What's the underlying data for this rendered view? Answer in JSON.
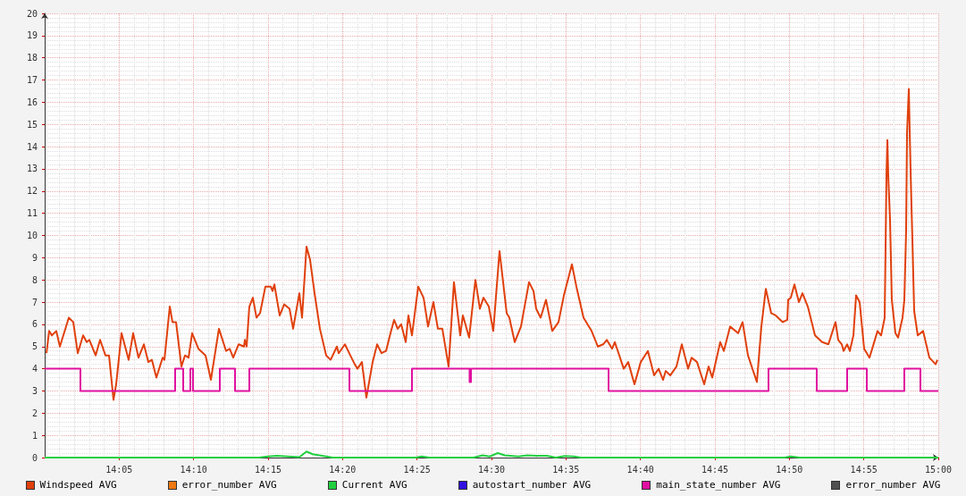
{
  "chart_data": {
    "type": "line",
    "xlim": [
      14,
      15
    ],
    "ylim": [
      0,
      20
    ],
    "xticks": [
      {
        "value": 14.083333,
        "label": "14:05"
      },
      {
        "value": 14.166667,
        "label": "14:10"
      },
      {
        "value": 14.25,
        "label": "14:15"
      },
      {
        "value": 14.333333,
        "label": "14:20"
      },
      {
        "value": 14.416667,
        "label": "14:25"
      },
      {
        "value": 14.5,
        "label": "14:30"
      },
      {
        "value": 14.583333,
        "label": "14:35"
      },
      {
        "value": 14.666667,
        "label": "14:40"
      },
      {
        "value": 14.75,
        "label": "14:45"
      },
      {
        "value": 14.833333,
        "label": "14:50"
      },
      {
        "value": 14.916667,
        "label": "14:55"
      },
      {
        "value": 15,
        "label": "15:00"
      }
    ],
    "yticks": [
      0,
      1,
      2,
      3,
      4,
      5,
      6,
      7,
      8,
      9,
      10,
      11,
      12,
      13,
      14,
      15,
      16,
      17,
      18,
      19,
      20
    ],
    "grid": true,
    "legend": "bottom",
    "marker": "none",
    "line_style": "solid",
    "series": [
      {
        "name": "Windspeed AVG",
        "color": "#e0400c",
        "x": [
          14.002,
          14.005,
          14.008,
          14.013,
          14.017,
          14.027,
          14.032,
          14.037,
          14.043,
          14.047,
          14.05,
          14.057,
          14.062,
          14.068,
          14.072,
          14.077,
          14.08,
          14.086,
          14.094,
          14.099,
          14.105,
          14.111,
          14.116,
          14.12,
          14.125,
          14.132,
          14.134,
          14.14,
          14.143,
          14.147,
          14.153,
          14.157,
          14.161,
          14.165,
          14.172,
          14.18,
          14.186,
          14.195,
          14.203,
          14.207,
          14.211,
          14.217,
          14.223,
          14.224,
          14.226,
          14.229,
          14.233,
          14.237,
          14.241,
          14.247,
          14.253,
          14.255,
          14.257,
          14.263,
          14.268,
          14.274,
          14.278,
          14.285,
          14.288,
          14.293,
          14.297,
          14.302,
          14.308,
          14.315,
          14.32,
          14.327,
          14.329,
          14.336,
          14.342,
          14.347,
          14.35,
          14.355,
          14.36,
          14.367,
          14.372,
          14.377,
          14.382,
          14.387,
          14.391,
          14.395,
          14.399,
          14.404,
          14.407,
          14.411,
          14.418,
          14.424,
          14.429,
          14.435,
          14.44,
          14.445,
          14.452,
          14.458,
          14.465,
          14.468,
          14.475,
          14.482,
          14.487,
          14.491,
          14.497,
          14.502,
          14.509,
          14.517,
          14.52,
          14.526,
          14.533,
          14.542,
          14.547,
          14.55,
          14.555,
          14.561,
          14.568,
          14.575,
          14.581,
          14.59,
          14.595,
          14.603,
          14.612,
          14.619,
          14.625,
          14.629,
          14.635,
          14.638,
          14.648,
          14.653,
          14.66,
          14.667,
          14.675,
          14.682,
          14.687,
          14.692,
          14.695,
          14.7,
          14.707,
          14.713,
          14.72,
          14.724,
          14.73,
          14.738,
          14.743,
          14.747,
          14.756,
          14.76,
          14.767,
          14.776,
          14.781,
          14.787,
          14.797,
          14.802,
          14.807,
          14.813,
          14.818,
          14.826,
          14.831,
          14.832,
          14.835,
          14.839,
          14.844,
          14.848,
          14.854,
          14.862,
          14.87,
          14.877,
          14.885,
          14.888,
          14.892,
          14.894,
          14.898,
          14.901,
          14.905,
          14.908,
          14.912,
          14.917,
          14.923,
          14.932,
          14.936,
          14.94,
          14.942,
          14.943,
          14.944,
          14.946,
          14.948,
          14.952,
          14.955,
          14.96,
          14.962,
          14.964,
          14.965,
          14.967,
          14.968,
          14.969,
          14.971,
          14.973,
          14.977,
          14.983,
          14.99,
          14.997,
          14.999
        ],
        "values": [
          4.7,
          5.7,
          5.5,
          5.7,
          5.0,
          6.3,
          6.1,
          4.7,
          5.5,
          5.2,
          5.3,
          4.6,
          5.3,
          4.6,
          4.6,
          2.6,
          3.3,
          5.6,
          4.4,
          5.6,
          4.5,
          5.1,
          4.3,
          4.4,
          3.6,
          4.5,
          4.4,
          6.8,
          6.1,
          6.1,
          4.1,
          4.6,
          4.5,
          5.6,
          4.9,
          4.6,
          3.5,
          5.8,
          4.8,
          4.9,
          4.5,
          5.1,
          5.0,
          5.3,
          5.0,
          6.8,
          7.2,
          6.3,
          6.5,
          7.7,
          7.7,
          7.5,
          7.8,
          6.4,
          6.9,
          6.7,
          5.8,
          7.4,
          6.3,
          9.5,
          8.9,
          7.4,
          5.8,
          4.6,
          4.4,
          5.0,
          4.7,
          5.1,
          4.6,
          4.2,
          4.0,
          4.3,
          2.7,
          4.3,
          5.1,
          4.7,
          4.8,
          5.6,
          6.2,
          5.8,
          6.0,
          5.2,
          6.4,
          5.5,
          7.7,
          7.2,
          5.9,
          7.0,
          5.8,
          5.8,
          4.1,
          7.9,
          5.5,
          6.4,
          5.4,
          8.0,
          6.7,
          7.2,
          6.8,
          5.7,
          9.3,
          6.5,
          6.3,
          5.2,
          5.9,
          7.9,
          7.5,
          6.7,
          6.3,
          7.1,
          5.7,
          6.1,
          7.3,
          8.7,
          7.7,
          6.3,
          5.7,
          5.0,
          5.1,
          5.3,
          4.9,
          5.2,
          4.0,
          4.3,
          3.3,
          4.3,
          4.8,
          3.7,
          4.0,
          3.5,
          3.9,
          3.7,
          4.1,
          5.1,
          4.0,
          4.5,
          4.3,
          3.3,
          4.1,
          3.6,
          5.2,
          4.8,
          5.9,
          5.6,
          6.1,
          4.6,
          3.4,
          5.9,
          7.6,
          6.5,
          6.4,
          6.1,
          6.2,
          7.1,
          7.2,
          7.8,
          7.0,
          7.4,
          6.8,
          5.5,
          5.2,
          5.1,
          6.1,
          5.3,
          5.1,
          4.8,
          5.1,
          4.8,
          5.5,
          7.3,
          7.0,
          4.9,
          4.5,
          5.7,
          5.5,
          6.3,
          12.7,
          14.3,
          12.7,
          10.7,
          7.1,
          5.6,
          5.4,
          6.3,
          7.1,
          10.2,
          14.6,
          16.6,
          14.7,
          12.9,
          9.8,
          6.6,
          5.5,
          5.7,
          4.5,
          4.2,
          4.4
        ]
      },
      {
        "name": "error_number AVG",
        "color": "#f07810"
      },
      {
        "name": "Current AVG",
        "color": "#20d040",
        "x": [
          14.0,
          14.24,
          14.25,
          14.26,
          14.272,
          14.285,
          14.293,
          14.3,
          14.315,
          14.322,
          14.415,
          14.422,
          14.43,
          14.48,
          14.49,
          14.498,
          14.507,
          14.515,
          14.53,
          14.54,
          14.55,
          14.562,
          14.572,
          14.582,
          14.592,
          14.6,
          14.828,
          14.835,
          14.845,
          15.0
        ],
        "values": [
          0,
          0,
          0.05,
          0.08,
          0.05,
          0.02,
          0.27,
          0.15,
          0.05,
          0,
          0,
          0.05,
          0,
          0,
          0.1,
          0.05,
          0.2,
          0.1,
          0.05,
          0.1,
          0.08,
          0.08,
          0,
          0.07,
          0.05,
          0,
          0,
          0.05,
          0,
          0
        ]
      },
      {
        "name": "autostart_number AVG",
        "color": "#3010e0"
      },
      {
        "name": "main_state_number AVG",
        "color": "#e010a0",
        "type": "step",
        "x": [
          14.0,
          14.04,
          14.146,
          14.155,
          14.163,
          14.166,
          14.196,
          14.213,
          14.229,
          14.341,
          14.411,
          14.4755,
          14.477,
          14.631,
          14.81,
          14.864,
          14.898,
          14.92,
          14.962,
          14.98,
          15.0
        ],
        "values": [
          4,
          3,
          4,
          3,
          4,
          3,
          4,
          3,
          4,
          3,
          4,
          3.4,
          4,
          3,
          4,
          3,
          4,
          3,
          4,
          3,
          3
        ]
      },
      {
        "name": "error_number AVG",
        "color": "#505050"
      }
    ]
  }
}
